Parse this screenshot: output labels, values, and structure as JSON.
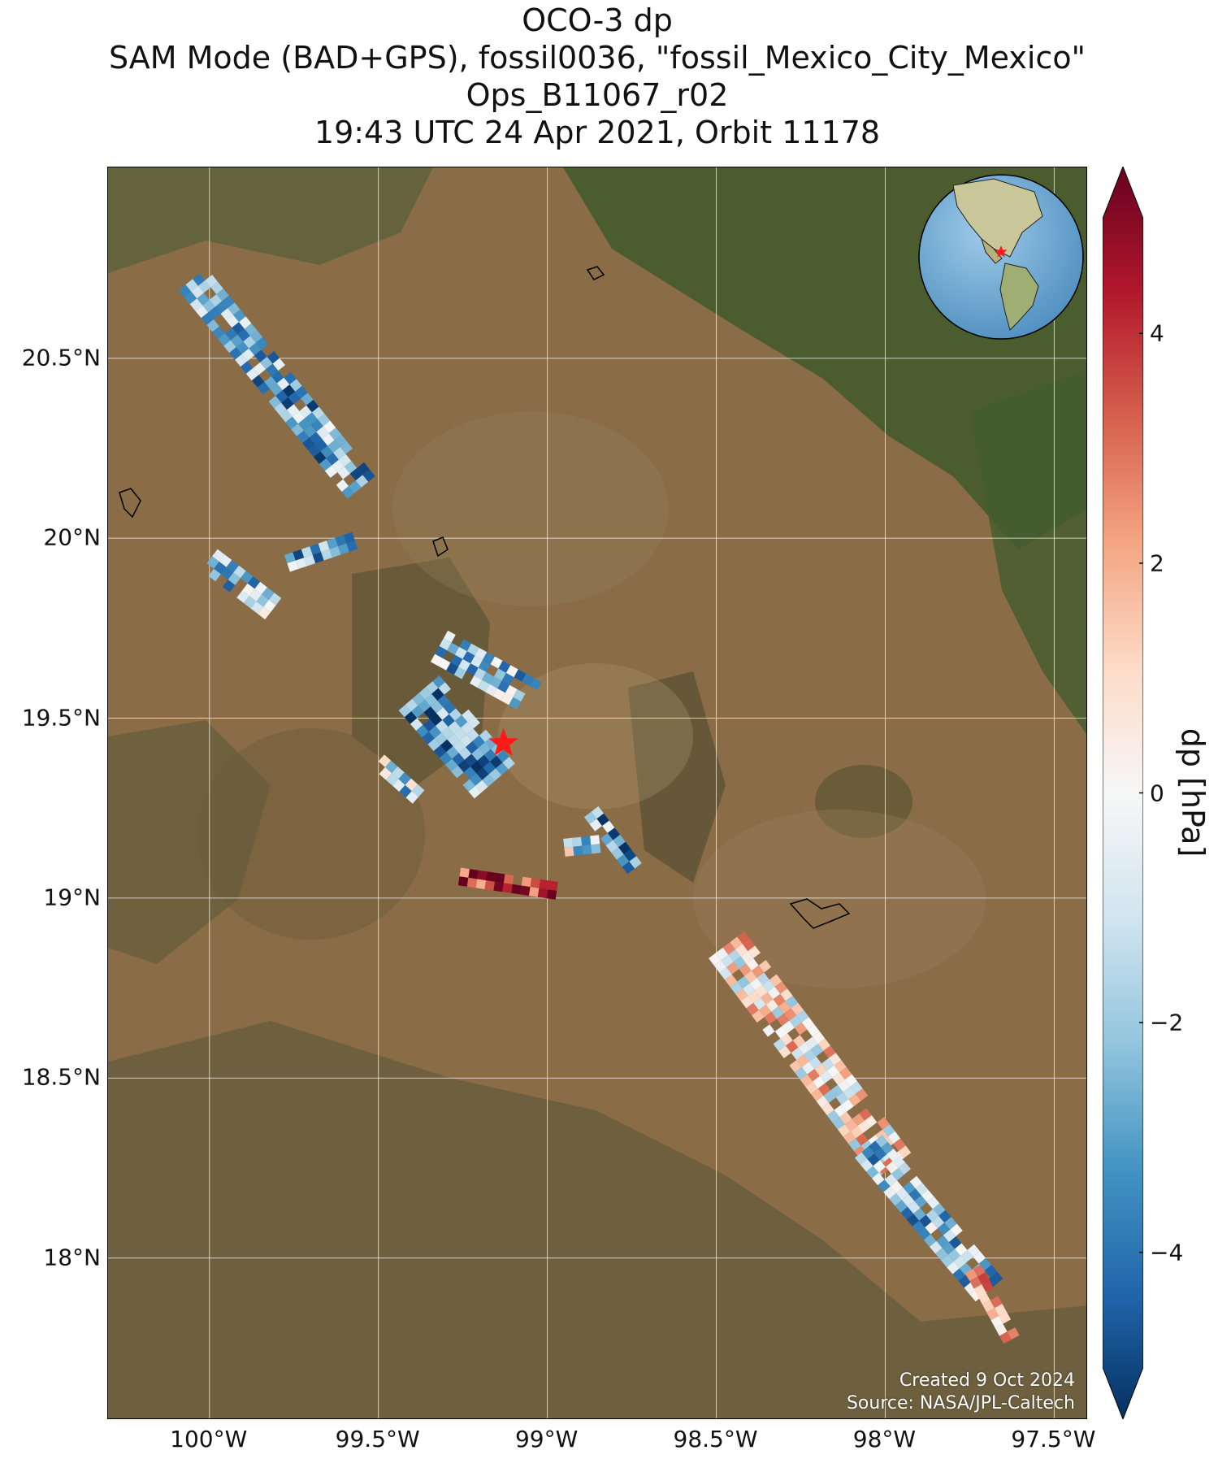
{
  "title": {
    "line1": "OCO-3 dp",
    "line2": "SAM Mode (BAD+GPS), fossil0036, \"fossil_Mexico_City_Mexico\"",
    "line3": "Ops_B11067_r02",
    "line4": "19:43 UTC 24 Apr 2021, Orbit 11178"
  },
  "map": {
    "lon_range": [
      -100.3,
      -97.4
    ],
    "lat_range": [
      17.55,
      21.03
    ],
    "lon_ticks": [
      {
        "value": -100.0,
        "label": "100°W"
      },
      {
        "value": -99.5,
        "label": "99.5°W"
      },
      {
        "value": -99.0,
        "label": "99°W"
      },
      {
        "value": -98.5,
        "label": "98.5°W"
      },
      {
        "value": -98.0,
        "label": "98°W"
      },
      {
        "value": -97.5,
        "label": "97.5°W"
      }
    ],
    "lat_ticks": [
      {
        "value": 20.5,
        "label": "20.5°N"
      },
      {
        "value": 20.0,
        "label": "20°N"
      },
      {
        "value": 19.5,
        "label": "19.5°N"
      },
      {
        "value": 19.0,
        "label": "19°N"
      },
      {
        "value": 18.5,
        "label": "18.5°N"
      },
      {
        "value": 18.0,
        "label": "18°N"
      }
    ],
    "target": {
      "name": "fossil_Mexico_City_Mexico",
      "lon": -99.13,
      "lat": 19.43,
      "marker_color": "#ff1a1a"
    },
    "background": "satellite imagery",
    "gridlines": true,
    "inset_globe": {
      "position": "top-right",
      "description": "globe showing the Americas with target star"
    },
    "credits": {
      "created": "Created 9 Oct 2024",
      "source": "Source: NASA/JPL-Caltech"
    }
  },
  "colorbar": {
    "label": "dp [hPa]",
    "range": [
      -5,
      5
    ],
    "ticks": [
      {
        "value": 4,
        "label": "4"
      },
      {
        "value": 2,
        "label": "2"
      },
      {
        "value": 0,
        "label": "0"
      },
      {
        "value": -2,
        "label": "−2"
      },
      {
        "value": -4,
        "label": "−4"
      }
    ],
    "extend": "both",
    "colormap": "RdBu_r",
    "colors": [
      "#053061",
      "#2166ac",
      "#4393c3",
      "#92c5de",
      "#d1e5f0",
      "#f7f7f7",
      "#fddbc7",
      "#f4a582",
      "#d6604d",
      "#b2182b",
      "#67001f"
    ]
  },
  "chart_data": {
    "type": "map-swaths",
    "variable": "dp",
    "units": "hPa",
    "swaths": [
      {
        "start": [
          -100.05,
          20.72
        ],
        "end": [
          -99.55,
          20.14
        ],
        "width_deg": 0.09,
        "mean_dp": -2.5
      },
      {
        "start": [
          -100.0,
          19.94
        ],
        "end": [
          -99.82,
          19.81
        ],
        "width_deg": 0.07,
        "mean_dp": -2.0
      },
      {
        "start": [
          -99.77,
          19.93
        ],
        "end": [
          -99.58,
          19.99
        ],
        "width_deg": 0.06,
        "mean_dp": -2.5
      },
      {
        "start": [
          -99.32,
          19.7
        ],
        "end": [
          -99.05,
          19.56
        ],
        "width_deg": 0.1,
        "mean_dp": -2.0
      },
      {
        "start": [
          -99.38,
          19.57
        ],
        "end": [
          -99.16,
          19.33
        ],
        "width_deg": 0.14,
        "mean_dp": -2.8
      },
      {
        "start": [
          -99.5,
          19.38
        ],
        "end": [
          -99.38,
          19.28
        ],
        "width_deg": 0.05,
        "mean_dp": -1.5
      },
      {
        "start": [
          -99.26,
          19.06
        ],
        "end": [
          -98.97,
          19.02
        ],
        "width_deg": 0.05,
        "mean_dp": 4.2
      },
      {
        "start": [
          -98.95,
          19.14
        ],
        "end": [
          -98.85,
          19.15
        ],
        "width_deg": 0.04,
        "mean_dp": -1.0
      },
      {
        "start": [
          -98.87,
          19.24
        ],
        "end": [
          -98.74,
          19.08
        ],
        "width_deg": 0.05,
        "mean_dp": -2.5
      },
      {
        "start": [
          -98.47,
          18.87
        ],
        "end": [
          -97.98,
          18.26
        ],
        "width_deg": 0.13,
        "mean_dp": 0.5
      },
      {
        "start": [
          -98.05,
          18.31
        ],
        "end": [
          -97.7,
          17.92
        ],
        "width_deg": 0.1,
        "mean_dp": -2.0
      },
      {
        "start": [
          -97.74,
          17.97
        ],
        "end": [
          -97.63,
          17.78
        ],
        "width_deg": 0.06,
        "mean_dp": 1.0
      }
    ]
  }
}
